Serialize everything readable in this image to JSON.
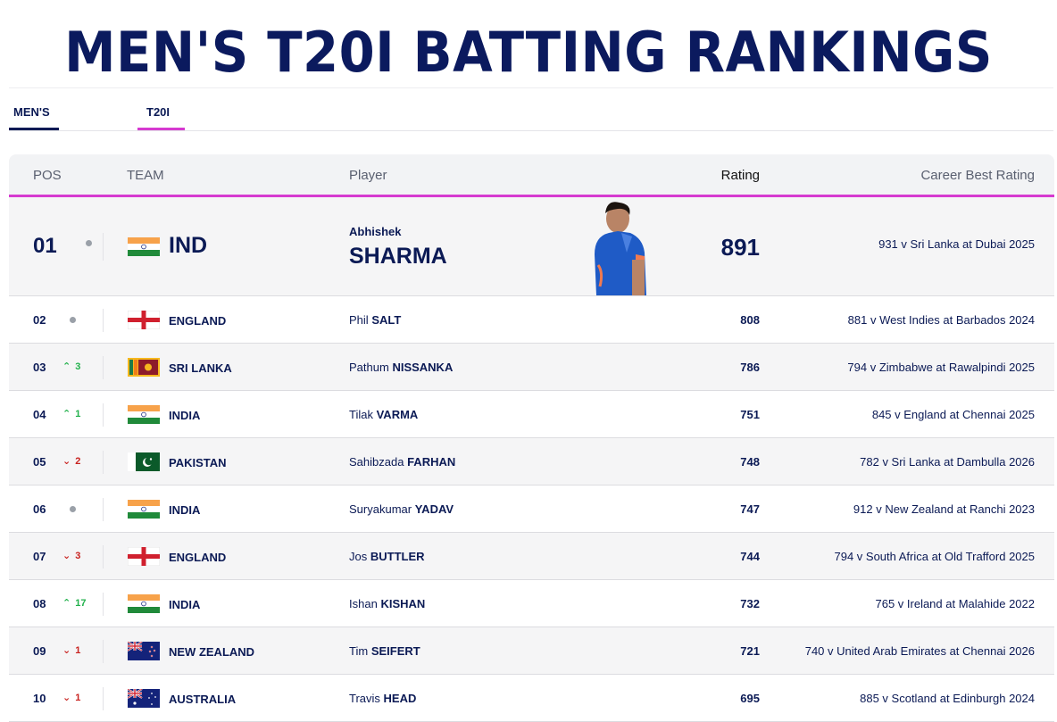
{
  "page": {
    "title": "MEN'S T20I BATTING RANKINGS"
  },
  "tabs": [
    {
      "label": "MEN'S",
      "underline_color": "#0b1a55"
    },
    {
      "label": "T20I",
      "underline_color": "#d63ad0"
    }
  ],
  "table": {
    "headers": {
      "pos": "POS",
      "team": "TEAM",
      "player": "Player",
      "rating": "Rating",
      "best": "Career Best Rating"
    },
    "rows": [
      {
        "pos": "01",
        "change_dir": "none",
        "change": "",
        "flag": "india",
        "team": "IND",
        "first": "Abhishek",
        "last": "SHARMA",
        "rating": "891",
        "best": "931 v Sri Lanka at Dubai 2025"
      },
      {
        "pos": "02",
        "change_dir": "none",
        "change": "",
        "flag": "england",
        "team": "ENGLAND",
        "first": "Phil",
        "last": "SALT",
        "rating": "808",
        "best": "881 v West Indies at Barbados 2024"
      },
      {
        "pos": "03",
        "change_dir": "up",
        "change": "3",
        "flag": "srilanka",
        "team": "SRI LANKA",
        "first": "Pathum",
        "last": "NISSANKA",
        "rating": "786",
        "best": "794 v Zimbabwe at Rawalpindi 2025"
      },
      {
        "pos": "04",
        "change_dir": "up",
        "change": "1",
        "flag": "india",
        "team": "INDIA",
        "first": "Tilak",
        "last": "VARMA",
        "rating": "751",
        "best": "845 v England at Chennai 2025"
      },
      {
        "pos": "05",
        "change_dir": "down",
        "change": "2",
        "flag": "pakistan",
        "team": "PAKISTAN",
        "first": "Sahibzada",
        "last": "FARHAN",
        "rating": "748",
        "best": "782 v Sri Lanka at Dambulla 2026"
      },
      {
        "pos": "06",
        "change_dir": "none",
        "change": "",
        "flag": "india",
        "team": "INDIA",
        "first": "Suryakumar",
        "last": "YADAV",
        "rating": "747",
        "best": "912 v New Zealand at Ranchi 2023"
      },
      {
        "pos": "07",
        "change_dir": "down",
        "change": "3",
        "flag": "england",
        "team": "ENGLAND",
        "first": "Jos",
        "last": "BUTTLER",
        "rating": "744",
        "best": "794 v South Africa at Old Trafford 2025"
      },
      {
        "pos": "08",
        "change_dir": "up",
        "change": "17",
        "flag": "india",
        "team": "INDIA",
        "first": "Ishan",
        "last": "KISHAN",
        "rating": "732",
        "best": "765 v Ireland at Malahide 2022"
      },
      {
        "pos": "09",
        "change_dir": "down",
        "change": "1",
        "flag": "newzealand",
        "team": "NEW ZEALAND",
        "first": "Tim",
        "last": "SEIFERT",
        "rating": "721",
        "best": "740 v United Arab Emirates at Chennai 2026"
      },
      {
        "pos": "10",
        "change_dir": "down",
        "change": "1",
        "flag": "australia",
        "team": "AUSTRALIA",
        "first": "Travis",
        "last": "HEAD",
        "rating": "695",
        "best": "885 v Scotland at Edinburgh 2024"
      }
    ]
  },
  "colors": {
    "navy": "#0b1a55",
    "accent_pink": "#d63ad0",
    "up": "#22b14c",
    "down": "#c8221f"
  }
}
